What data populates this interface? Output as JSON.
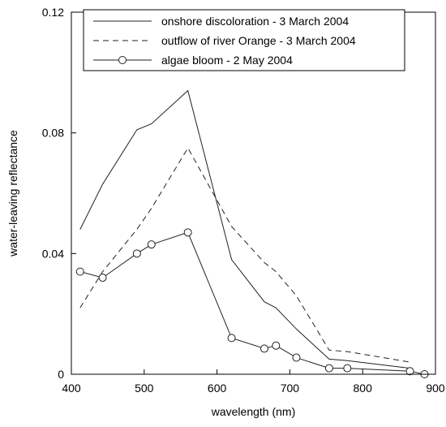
{
  "chart_data": {
    "type": "line",
    "xlabel": "wavelength (nm)",
    "ylabel": "water-leaving reflectance",
    "xlim": [
      400,
      900
    ],
    "ylim": [
      0,
      0.12
    ],
    "x_ticks": [
      "400",
      "500",
      "600",
      "700",
      "800",
      "900"
    ],
    "y_ticks": [
      "0",
      "0.04",
      "0.08",
      "0.12"
    ],
    "grid": false,
    "legend_position": "top",
    "series": [
      {
        "name": "onshore discoloration - 3 March 2004",
        "style": "solid",
        "marker": "none",
        "x": [
          412,
          443,
          490,
          510,
          560,
          620,
          665,
          681,
          709,
          754,
          779,
          865
        ],
        "y": [
          0.048,
          0.063,
          0.081,
          0.083,
          0.094,
          0.038,
          0.024,
          0.022,
          0.015,
          0.005,
          0.0045,
          0.002
        ]
      },
      {
        "name": "outflow of river Orange - 3 March 2004",
        "style": "dashed",
        "marker": "none",
        "x": [
          412,
          443,
          490,
          510,
          560,
          620,
          665,
          681,
          709,
          754,
          779,
          865
        ],
        "y": [
          0.022,
          0.034,
          0.048,
          0.055,
          0.075,
          0.049,
          0.037,
          0.034,
          0.026,
          0.008,
          0.0075,
          0.004
        ]
      },
      {
        "name": "algae bloom - 2 May 2004",
        "style": "solid",
        "marker": "circle",
        "x": [
          412,
          443,
          490,
          510,
          560,
          620,
          665,
          681,
          709,
          754,
          779,
          865,
          885
        ],
        "y": [
          0.034,
          0.032,
          0.04,
          0.043,
          0.047,
          0.012,
          0.0085,
          0.0095,
          0.0055,
          0.002,
          0.002,
          0.001,
          0.0
        ]
      }
    ]
  }
}
